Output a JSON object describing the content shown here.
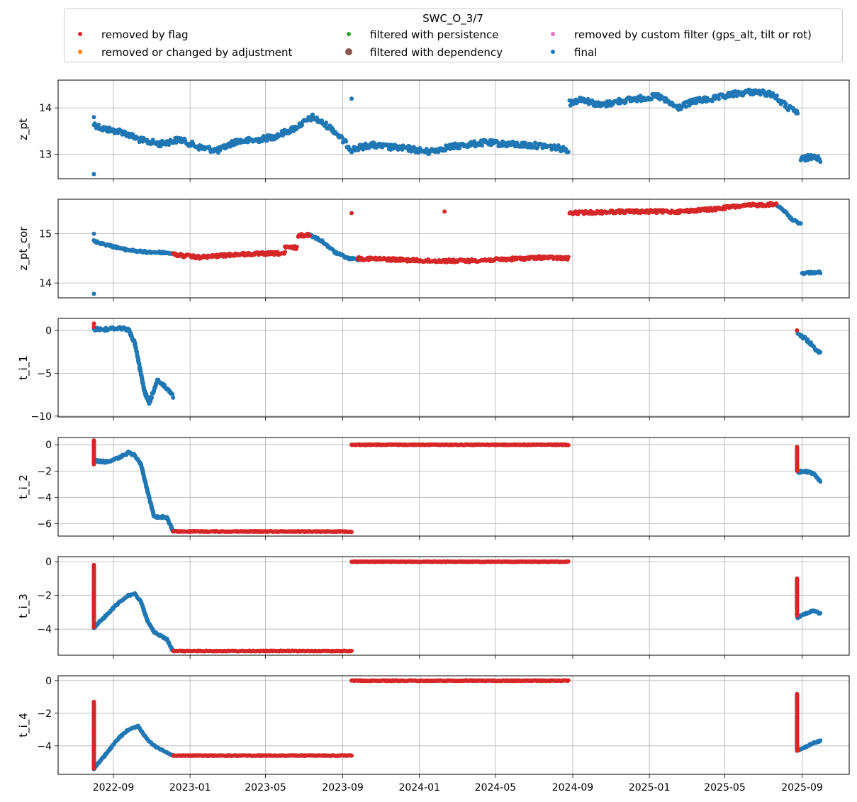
{
  "chart_data": {
    "type": "scatter",
    "layout": "6 vertically stacked panels sharing a date x-axis",
    "legend": {
      "title": "SWC_O_3/7",
      "placement": "top, above panels",
      "entries": [
        {
          "label": "removed by flag",
          "color": "#d62728",
          "marker": "dot"
        },
        {
          "label": "removed or changed by adjustment",
          "color": "#ff7f0e",
          "marker": "dot"
        },
        {
          "label": "filtered with persistence",
          "color": "#2ca02c",
          "marker": "dot"
        },
        {
          "label": "filtered with dependency",
          "color": "#8c564b",
          "marker": "large-dot"
        },
        {
          "label": "removed by custom filter (gps_alt, tilt or rot)",
          "color": "#e377c2",
          "marker": "dot"
        },
        {
          "label": "final",
          "color": "#1f77b4",
          "marker": "dot"
        }
      ]
    },
    "x_axis": {
      "min": "2022-06-05",
      "max": "2025-11-15",
      "ticks": [
        "2022-09",
        "2023-01",
        "2023-05",
        "2023-09",
        "2024-01",
        "2024-05",
        "2024-09",
        "2025-01",
        "2025-05",
        "2025-09"
      ],
      "grid": true
    },
    "panels": [
      {
        "ylabel": "z_pt",
        "ylim": [
          12.47,
          14.6
        ],
        "yticks": [
          13,
          14
        ],
        "series": [
          {
            "name": "final",
            "color": "#1f77b4",
            "segments": [
              {
                "x": [
                  "2022-08-01",
                  "2022-08-15",
                  "2022-09-15",
                  "2022-10-15",
                  "2022-11-15",
                  "2022-12-15",
                  "2023-01-15",
                  "2023-02-15",
                  "2023-03-15",
                  "2023-04-15",
                  "2023-05-15",
                  "2023-06-15",
                  "2023-07-15",
                  "2023-08-15",
                  "2023-09-15",
                  "2023-10-15",
                  "2023-11-15",
                  "2023-12-15",
                  "2024-01-15",
                  "2024-02-15",
                  "2024-03-15",
                  "2024-04-15",
                  "2024-05-15",
                  "2024-06-15",
                  "2024-07-15",
                  "2024-08-25"
                ],
                "y": [
                  13.65,
                  13.55,
                  13.48,
                  13.3,
                  13.22,
                  13.32,
                  13.15,
                  13.08,
                  13.28,
                  13.3,
                  13.38,
                  13.55,
                  13.8,
                  13.55,
                  13.1,
                  13.2,
                  13.15,
                  13.12,
                  13.05,
                  13.15,
                  13.2,
                  13.25,
                  13.22,
                  13.2,
                  13.18,
                  13.1
                ]
              },
              {
                "x": [
                  "2024-08-27",
                  "2024-09-15",
                  "2024-10-15",
                  "2024-11-15",
                  "2024-12-15",
                  "2025-01-15",
                  "2025-02-15",
                  "2025-03-15",
                  "2025-04-15",
                  "2025-05-15",
                  "2025-06-15",
                  "2025-07-15",
                  "2025-08-10",
                  "2025-08-25"
                ],
                "y": [
                  14.1,
                  14.2,
                  14.05,
                  14.15,
                  14.2,
                  14.25,
                  14.0,
                  14.15,
                  14.2,
                  14.3,
                  14.35,
                  14.3,
                  14.0,
                  13.9
                ]
              },
              {
                "x": [
                  "2025-08-30",
                  "2025-09-10",
                  "2025-09-20",
                  "2025-09-30"
                ],
                "y": [
                  12.88,
                  12.92,
                  12.98,
                  12.85
                ]
              }
            ],
            "jitter": 0.06
          },
          {
            "name": "final",
            "color": "#1f77b4",
            "points": [
              [
                "2022-08-01",
                12.57
              ],
              [
                "2023-09-15",
                14.2
              ],
              [
                "2022-08-01",
                13.8
              ]
            ]
          }
        ]
      },
      {
        "ylabel": "z_pt_cor",
        "ylim": [
          13.7,
          15.7
        ],
        "yticks": [
          14,
          15
        ],
        "series": [
          {
            "name": "final",
            "color": "#1f77b4",
            "segments": [
              {
                "x": [
                  "2022-08-01",
                  "2022-08-20",
                  "2022-09-20",
                  "2022-10-20",
                  "2022-11-20",
                  "2022-12-05"
                ],
                "y": [
                  14.85,
                  14.78,
                  14.68,
                  14.63,
                  14.62,
                  14.6
                ]
              },
              {
                "x": [
                  "2023-07-10",
                  "2023-07-30",
                  "2023-08-20",
                  "2023-09-10",
                  "2023-09-25"
                ],
                "y": [
                  14.98,
                  14.85,
                  14.62,
                  14.5,
                  14.48
                ]
              },
              {
                "x": [
                  "2025-07-22",
                  "2025-08-05",
                  "2025-08-15",
                  "2025-08-30"
                ],
                "y": [
                  15.6,
                  15.45,
                  15.3,
                  15.2
                ]
              },
              {
                "x": [
                  "2025-09-01",
                  "2025-09-30"
                ],
                "y": [
                  14.2,
                  14.22
                ]
              }
            ],
            "jitter": 0.02
          },
          {
            "name": "removed by flag",
            "color": "#d62728",
            "segments": [
              {
                "x": [
                  "2022-12-05",
                  "2023-01-15",
                  "2023-03-15",
                  "2023-05-15",
                  "2023-06-01"
                ],
                "y": [
                  14.58,
                  14.52,
                  14.58,
                  14.6,
                  14.6
                ]
              },
              {
                "x": [
                  "2023-06-01",
                  "2023-06-20"
                ],
                "y": [
                  14.72,
                  14.72
                ]
              },
              {
                "x": [
                  "2023-06-22",
                  "2023-07-10"
                ],
                "y": [
                  14.96,
                  14.98
                ]
              },
              {
                "x": [
                  "2023-09-25",
                  "2023-11-15",
                  "2024-01-15",
                  "2024-03-15",
                  "2024-05-15",
                  "2024-07-15",
                  "2024-08-25"
                ],
                "y": [
                  14.5,
                  14.48,
                  14.45,
                  14.45,
                  14.48,
                  14.52,
                  14.5
                ]
              },
              {
                "x": [
                  "2024-08-27",
                  "2024-11-15",
                  "2025-02-15",
                  "2025-04-15",
                  "2025-05-15",
                  "2025-06-15",
                  "2025-07-22"
                ],
                "y": [
                  15.42,
                  15.45,
                  15.45,
                  15.5,
                  15.55,
                  15.58,
                  15.6
                ]
              }
            ],
            "jitter": 0.03
          },
          {
            "name": "removed by flag",
            "color": "#d62728",
            "points": [
              [
                "2023-09-15",
                15.42
              ],
              [
                "2024-02-10",
                15.45
              ]
            ]
          },
          {
            "name": "final",
            "color": "#1f77b4",
            "points": [
              [
                "2022-08-01",
                13.78
              ],
              [
                "2022-08-01",
                15.0
              ]
            ]
          }
        ]
      },
      {
        "ylabel": "t_i_1",
        "ylim": [
          -10.1,
          1.4
        ],
        "yticks": [
          -10,
          -5,
          0
        ],
        "series": [
          {
            "name": "final",
            "color": "#1f77b4",
            "segments": [
              {
                "x": [
                  "2022-08-01",
                  "2022-08-20",
                  "2022-09-10",
                  "2022-09-25",
                  "2022-10-05",
                  "2022-10-12",
                  "2022-10-20",
                  "2022-10-28",
                  "2022-11-10",
                  "2022-11-25",
                  "2022-12-05"
                ],
                "y": [
                  0.2,
                  0.1,
                  0.3,
                  0.1,
                  -1.5,
                  -4.0,
                  -7.0,
                  -8.5,
                  -5.8,
                  -6.8,
                  -7.7
                ]
              },
              {
                "x": [
                  "2025-08-25",
                  "2025-09-05",
                  "2025-09-15",
                  "2025-09-30"
                ],
                "y": [
                  -0.5,
                  -0.9,
                  -1.6,
                  -2.7
                ]
              }
            ],
            "jitter": 0.2
          },
          {
            "name": "removed by flag",
            "color": "#d62728",
            "points": [
              [
                "2022-08-01",
                0.8
              ],
              [
                "2022-08-01",
                0.4
              ],
              [
                "2025-08-24",
                0.0
              ]
            ]
          }
        ]
      },
      {
        "ylabel": "t_i_2",
        "ylim": [
          -6.95,
          0.55
        ],
        "yticks": [
          -6,
          -4,
          -2,
          0
        ],
        "series": [
          {
            "name": "final",
            "color": "#1f77b4",
            "segments": [
              {
                "x": [
                  "2022-08-01",
                  "2022-08-20",
                  "2022-09-10",
                  "2022-09-25",
                  "2022-10-05",
                  "2022-10-15",
                  "2022-10-25",
                  "2022-11-05",
                  "2022-11-25",
                  "2022-12-05"
                ],
                "y": [
                  -1.2,
                  -1.3,
                  -1.0,
                  -0.6,
                  -0.8,
                  -1.5,
                  -3.5,
                  -5.5,
                  -5.5,
                  -6.6
                ]
              },
              {
                "x": [
                  "2025-08-25",
                  "2025-09-05",
                  "2025-09-20",
                  "2025-09-30"
                ],
                "y": [
                  -2.1,
                  -2.0,
                  -2.2,
                  -2.8
                ]
              }
            ],
            "jitter": 0.08
          },
          {
            "name": "removed by flag",
            "color": "#d62728",
            "segments": [
              {
                "x": [
                  "2022-12-05",
                  "2023-09-15"
                ],
                "y": [
                  -6.6,
                  -6.6
                ]
              },
              {
                "x": [
                  "2023-09-15",
                  "2024-08-25"
                ],
                "y": [
                  0.0,
                  0.0
                ]
              },
              {
                "x": [
                  "2022-08-01",
                  "2022-08-01"
                ],
                "y": [
                  0.3,
                  -1.5
                ]
              },
              {
                "x": [
                  "2025-08-24",
                  "2025-08-24"
                ],
                "y": [
                  -0.2,
                  -2.0
                ]
              }
            ],
            "jitter": 0.03
          }
        ]
      },
      {
        "ylabel": "t_i_3",
        "ylim": [
          -5.55,
          0.3
        ],
        "yticks": [
          -4,
          -2,
          0
        ],
        "series": [
          {
            "name": "final",
            "color": "#1f77b4",
            "segments": [
              {
                "x": [
                  "2022-08-01",
                  "2022-08-20",
                  "2022-09-10",
                  "2022-09-25",
                  "2022-10-05",
                  "2022-10-15",
                  "2022-10-25",
                  "2022-11-05",
                  "2022-11-25",
                  "2022-12-05"
                ],
                "y": [
                  -3.9,
                  -3.2,
                  -2.4,
                  -2.0,
                  -1.9,
                  -2.4,
                  -3.5,
                  -4.2,
                  -4.6,
                  -5.3
                ]
              },
              {
                "x": [
                  "2025-08-25",
                  "2025-09-05",
                  "2025-09-20",
                  "2025-09-30"
                ],
                "y": [
                  -3.3,
                  -3.1,
                  -2.9,
                  -3.1
                ]
              }
            ],
            "jitter": 0.05
          },
          {
            "name": "removed by flag",
            "color": "#d62728",
            "segments": [
              {
                "x": [
                  "2022-12-05",
                  "2023-09-15"
                ],
                "y": [
                  -5.3,
                  -5.3
                ]
              },
              {
                "x": [
                  "2023-09-15",
                  "2024-08-25"
                ],
                "y": [
                  0.0,
                  0.0
                ]
              },
              {
                "x": [
                  "2022-08-01",
                  "2022-08-01"
                ],
                "y": [
                  -0.2,
                  -3.9
                ]
              },
              {
                "x": [
                  "2025-08-24",
                  "2025-08-24"
                ],
                "y": [
                  -1.0,
                  -3.2
                ]
              }
            ],
            "jitter": 0.02
          }
        ]
      },
      {
        "ylabel": "t_i_4",
        "ylim": [
          -5.75,
          0.3
        ],
        "yticks": [
          -4,
          -2,
          0
        ],
        "series": [
          {
            "name": "final",
            "color": "#1f77b4",
            "segments": [
              {
                "x": [
                  "2022-08-01",
                  "2022-08-20",
                  "2022-09-10",
                  "2022-09-25",
                  "2022-10-10",
                  "2022-10-25",
                  "2022-11-05",
                  "2022-11-25",
                  "2022-12-05"
                ],
                "y": [
                  -5.4,
                  -4.5,
                  -3.5,
                  -3.0,
                  -2.8,
                  -3.6,
                  -4.0,
                  -4.4,
                  -4.6
                ]
              },
              {
                "x": [
                  "2025-08-25",
                  "2025-09-05",
                  "2025-09-20",
                  "2025-09-30"
                ],
                "y": [
                  -4.3,
                  -4.1,
                  -3.8,
                  -3.7
                ]
              }
            ],
            "jitter": 0.04
          },
          {
            "name": "removed by flag",
            "color": "#d62728",
            "segments": [
              {
                "x": [
                  "2022-12-05",
                  "2023-09-15"
                ],
                "y": [
                  -4.6,
                  -4.6
                ]
              },
              {
                "x": [
                  "2023-09-15",
                  "2024-08-25"
                ],
                "y": [
                  0.0,
                  0.0
                ]
              },
              {
                "x": [
                  "2022-08-01",
                  "2022-08-01"
                ],
                "y": [
                  -1.3,
                  -5.4
                ]
              },
              {
                "x": [
                  "2025-08-24",
                  "2025-08-24"
                ],
                "y": [
                  -0.8,
                  -4.3
                ]
              }
            ],
            "jitter": 0.02
          }
        ]
      }
    ]
  }
}
